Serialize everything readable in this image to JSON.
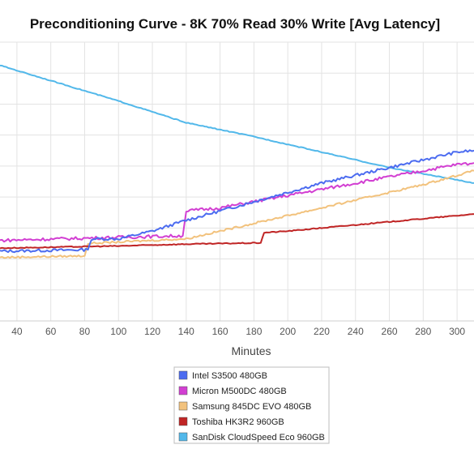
{
  "chart_data": {
    "type": "line",
    "title": "Preconditioning Curve - 8K 70% Read 30% Write [Avg Latency]",
    "xlabel": "Minutes",
    "ylabel": "",
    "xlim": [
      30,
      310
    ],
    "ylim": [
      0,
      9
    ],
    "x_ticks": [
      40,
      60,
      80,
      100,
      120,
      140,
      160,
      180,
      200,
      220,
      240,
      260,
      280,
      300
    ],
    "y_gridlines": [
      1,
      2,
      3,
      4,
      5,
      6,
      7,
      8,
      9
    ],
    "grid": true,
    "legend_position": "bottom",
    "series": [
      {
        "name": "Intel S3500 480GB",
        "color": "#4c6cf0",
        "points": [
          [
            30,
            2.25
          ],
          [
            82,
            2.3
          ],
          [
            84,
            2.65
          ],
          [
            100,
            2.65
          ],
          [
            120,
            2.9
          ],
          [
            140,
            3.25
          ],
          [
            160,
            3.55
          ],
          [
            180,
            3.85
          ],
          [
            200,
            4.15
          ],
          [
            220,
            4.45
          ],
          [
            240,
            4.7
          ],
          [
            260,
            4.95
          ],
          [
            280,
            5.2
          ],
          [
            300,
            5.45
          ],
          [
            310,
            5.5
          ]
        ]
      },
      {
        "name": "Micron M500DC 480GB",
        "color": "#d23fd2",
        "points": [
          [
            30,
            2.6
          ],
          [
            100,
            2.7
          ],
          [
            138,
            2.75
          ],
          [
            140,
            3.55
          ],
          [
            160,
            3.65
          ],
          [
            180,
            3.85
          ],
          [
            200,
            4.05
          ],
          [
            220,
            4.25
          ],
          [
            240,
            4.45
          ],
          [
            260,
            4.65
          ],
          [
            280,
            4.85
          ],
          [
            300,
            5.05
          ],
          [
            310,
            5.1
          ]
        ]
      },
      {
        "name": "Samsung 845DC EVO 480GB",
        "color": "#f2c27d",
        "points": [
          [
            30,
            2.05
          ],
          [
            80,
            2.1
          ],
          [
            82,
            2.5
          ],
          [
            120,
            2.6
          ],
          [
            140,
            2.65
          ],
          [
            160,
            2.9
          ],
          [
            180,
            3.15
          ],
          [
            200,
            3.4
          ],
          [
            220,
            3.65
          ],
          [
            240,
            3.9
          ],
          [
            260,
            4.15
          ],
          [
            280,
            4.4
          ],
          [
            300,
            4.7
          ],
          [
            310,
            4.85
          ]
        ]
      },
      {
        "name": "Toshiba HK3R2 960GB",
        "color": "#c02525",
        "points": [
          [
            30,
            2.35
          ],
          [
            100,
            2.42
          ],
          [
            140,
            2.48
          ],
          [
            184,
            2.52
          ],
          [
            186,
            2.85
          ],
          [
            200,
            2.9
          ],
          [
            220,
            3.0
          ],
          [
            240,
            3.1
          ],
          [
            260,
            3.2
          ],
          [
            280,
            3.3
          ],
          [
            300,
            3.4
          ],
          [
            310,
            3.45
          ]
        ]
      },
      {
        "name": "SanDisk CloudSpeed Eco 960GB",
        "color": "#52b8ea",
        "points": [
          [
            30,
            8.25
          ],
          [
            100,
            7.1
          ],
          [
            140,
            6.4
          ],
          [
            180,
            5.95
          ],
          [
            220,
            5.45
          ],
          [
            260,
            4.95
          ],
          [
            300,
            4.55
          ],
          [
            310,
            4.45
          ]
        ]
      }
    ]
  }
}
